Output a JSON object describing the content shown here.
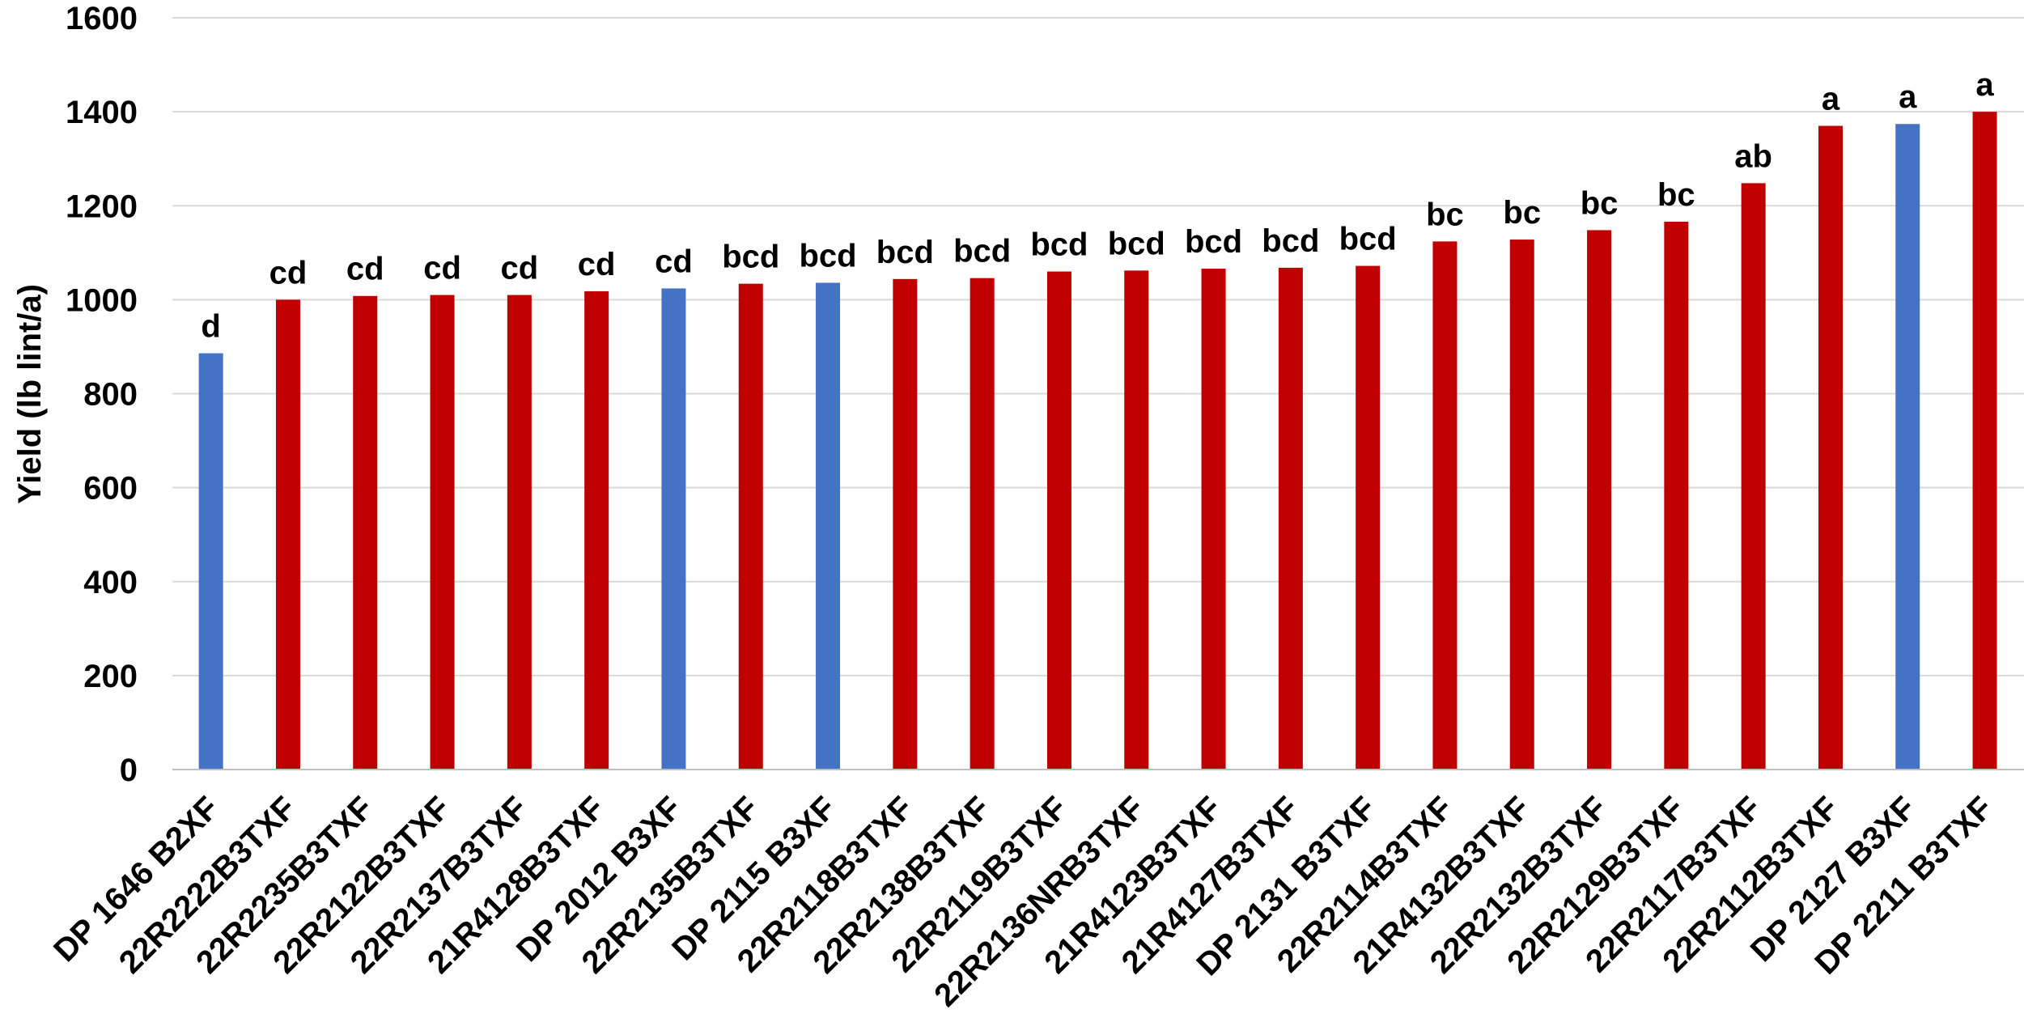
{
  "chart_data": {
    "type": "bar",
    "title": "",
    "xlabel": "",
    "ylabel": "Yield (lb lint/a)",
    "ylim": [
      0,
      1600
    ],
    "y_ticks": [
      "0",
      "200",
      "400",
      "600",
      "800",
      "1000",
      "1200",
      "1400",
      "1600"
    ],
    "grid": "horizontal",
    "legend": "none",
    "colors": {
      "check": "#4472C4",
      "entry": "#C00000",
      "grid": "#D9D9D9",
      "axis": "#BFBFBF"
    },
    "categories": [
      "DP 1646 B2XF",
      "22R2222B3TXF",
      "22R2235B3TXF",
      "22R2122B3TXF",
      "22R2137B3TXF",
      "21R4128B3TXF",
      "DP 2012 B3XF",
      "22R2135B3TXF",
      "DP 2115 B3XF",
      "22R2118B3TXF",
      "22R2138B3TXF",
      "22R2119B3TXF",
      "22R2136NRB3TXF",
      "21R4123B3TXF",
      "21R4127B3TXF",
      "DP 2131 B3TXF",
      "22R2114B3TXF",
      "21R4132B3TXF",
      "22R2132B3TXF",
      "22R2129B3TXF",
      "22R2117B3TXF",
      "22R2112B3TXF",
      "DP 2127 B3XF",
      "DP 2211 B3TXF"
    ],
    "values": [
      886,
      1000,
      1008,
      1010,
      1010,
      1018,
      1024,
      1034,
      1036,
      1044,
      1046,
      1060,
      1062,
      1066,
      1068,
      1072,
      1124,
      1128,
      1148,
      1166,
      1248,
      1370,
      1374,
      1400
    ],
    "bar_color_keys": [
      "check",
      "entry",
      "entry",
      "entry",
      "entry",
      "entry",
      "check",
      "entry",
      "check",
      "entry",
      "entry",
      "entry",
      "entry",
      "entry",
      "entry",
      "entry",
      "entry",
      "entry",
      "entry",
      "entry",
      "entry",
      "entry",
      "check",
      "entry"
    ],
    "data_labels": [
      "d",
      "cd",
      "cd",
      "cd",
      "cd",
      "cd",
      "cd",
      "bcd",
      "bcd",
      "bcd",
      "bcd",
      "bcd",
      "bcd",
      "bcd",
      "bcd",
      "bcd",
      "bc",
      "bc",
      "bc",
      "bc",
      "ab",
      "a",
      "a",
      "a"
    ]
  }
}
